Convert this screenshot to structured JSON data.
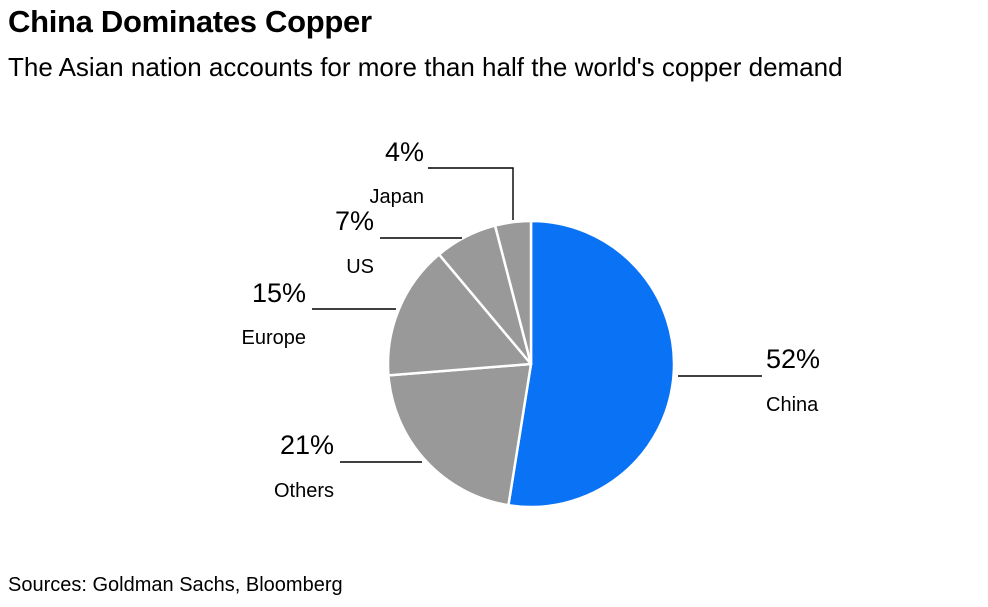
{
  "header": {
    "title": "China Dominates Copper",
    "subtitle": "The Asian nation accounts for more than half the world's copper demand"
  },
  "footer": {
    "source": "Sources: Goldman Sachs, Bloomberg"
  },
  "colors": {
    "highlight": "#0a72f5",
    "other": "#999999",
    "separator": "#ffffff",
    "leader": "#000000"
  },
  "chart_data": {
    "type": "pie",
    "title": "China Dominates Copper",
    "subtitle": "The Asian nation accounts for more than half the world's copper demand",
    "slices": [
      {
        "name": "China",
        "value": 52,
        "label": "52%",
        "color": "#0a72f5"
      },
      {
        "name": "Others",
        "value": 21,
        "label": "21%",
        "color": "#999999"
      },
      {
        "name": "Europe",
        "value": 15,
        "label": "15%",
        "color": "#999999"
      },
      {
        "name": "US",
        "value": 7,
        "label": "7%",
        "color": "#999999"
      },
      {
        "name": "Japan",
        "value": 4,
        "label": "4%",
        "color": "#999999"
      }
    ],
    "start": "top",
    "direction": "clockwise"
  }
}
